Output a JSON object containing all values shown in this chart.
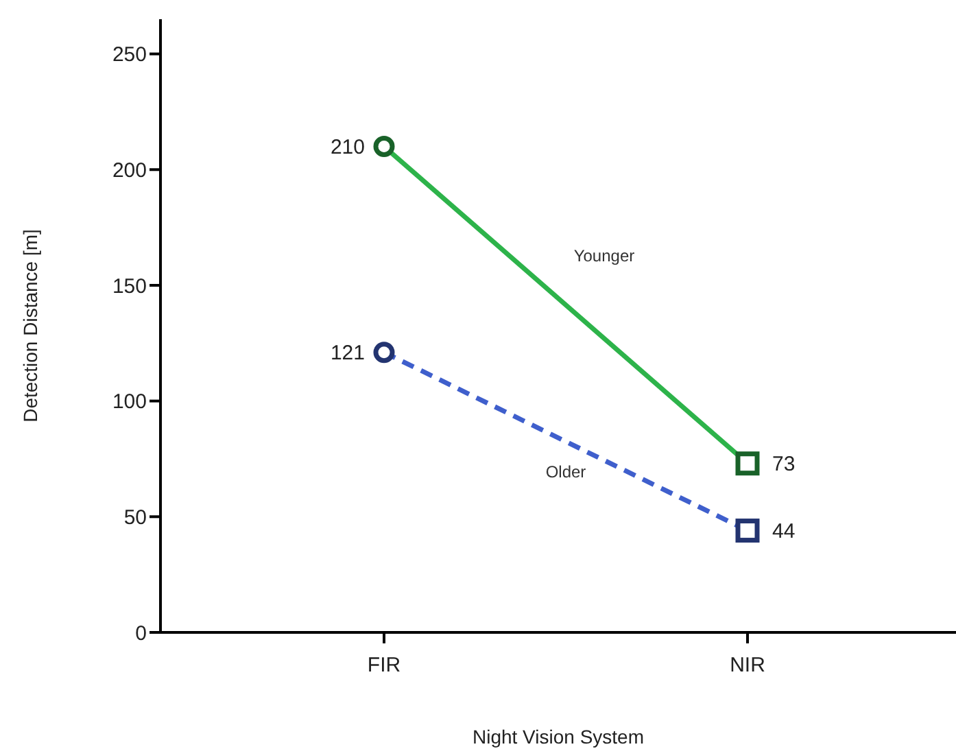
{
  "chart_data": {
    "type": "line",
    "xlabel": "Night Vision System",
    "ylabel": "Detection Distance [m]",
    "categories": [
      "FIR",
      "NIR"
    ],
    "series": [
      {
        "name": "Younger",
        "color": "#2db34a",
        "values": [
          210,
          73
        ],
        "line_style": "solid"
      },
      {
        "name": "Older",
        "color": "#3f5fcc",
        "values": [
          121,
          44
        ],
        "line_style": "dashed"
      }
    ],
    "ylim": [
      0,
      265
    ],
    "yticks": [
      0,
      50,
      100,
      150,
      200,
      250
    ],
    "data_labels": true,
    "grid": false,
    "legend": false,
    "marker": [
      "circle",
      "square"
    ]
  }
}
